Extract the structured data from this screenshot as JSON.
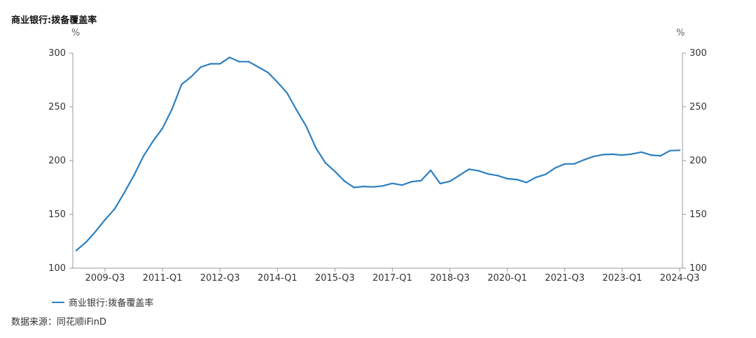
{
  "chart_data": {
    "type": "line",
    "title": "商业银行:拨备覆盖率",
    "y_unit_left": "%",
    "y_unit_right": "%",
    "ylim": [
      100,
      300
    ],
    "yticks": [
      100,
      150,
      200,
      250,
      300
    ],
    "xtick_labels": [
      "2009-Q3",
      "2011-Q1",
      "2012-Q3",
      "2014-Q1",
      "2015-Q3",
      "2017-Q1",
      "2018-Q3",
      "2020-Q1",
      "2021-Q3",
      "2023-Q1",
      "2024-Q3"
    ],
    "grid": false,
    "legend_position": "bottom-left",
    "series": [
      {
        "name": "商业银行:拨备覆盖率",
        "color": "#2b7fc1",
        "x": [
          "2008-Q4",
          "2009-Q1",
          "2009-Q2",
          "2009-Q3",
          "2009-Q4",
          "2010-Q1",
          "2010-Q2",
          "2010-Q3",
          "2010-Q4",
          "2011-Q1",
          "2011-Q2",
          "2011-Q3",
          "2011-Q4",
          "2012-Q1",
          "2012-Q2",
          "2012-Q3",
          "2012-Q4",
          "2013-Q1",
          "2013-Q2",
          "2013-Q3",
          "2013-Q4",
          "2014-Q1",
          "2014-Q2",
          "2014-Q3",
          "2014-Q4",
          "2015-Q1",
          "2015-Q2",
          "2015-Q3",
          "2015-Q4",
          "2016-Q1",
          "2016-Q2",
          "2016-Q3",
          "2016-Q4",
          "2017-Q1",
          "2017-Q2",
          "2017-Q3",
          "2017-Q4",
          "2018-Q1",
          "2018-Q2",
          "2018-Q3",
          "2018-Q4",
          "2019-Q1",
          "2019-Q2",
          "2019-Q3",
          "2019-Q4",
          "2020-Q1",
          "2020-Q2",
          "2020-Q3",
          "2020-Q4",
          "2021-Q1",
          "2021-Q2",
          "2021-Q3",
          "2021-Q4",
          "2022-Q1",
          "2022-Q2",
          "2022-Q3",
          "2022-Q4",
          "2023-Q1",
          "2023-Q2",
          "2023-Q3",
          "2023-Q4",
          "2024-Q1",
          "2024-Q2",
          "2024-Q3"
        ],
        "values": [
          116.4,
          124,
          134,
          145,
          155,
          170,
          186,
          204,
          218,
          230,
          248,
          271,
          278,
          287,
          290,
          290,
          296,
          292,
          292,
          287,
          282,
          273,
          263,
          247,
          232,
          212,
          198,
          190,
          181,
          175,
          176,
          175.5,
          176.5,
          178.8,
          177.2,
          180.4,
          181.4,
          191,
          178.7,
          180.7,
          186.3,
          192,
          190.5,
          187.6,
          186.1,
          183.2,
          182.4,
          179.7,
          184.5,
          187.2,
          193.2,
          196.9,
          197,
          200.7,
          203.8,
          205.6,
          205.9,
          205.1,
          206.1,
          207.9,
          205.1,
          204.5,
          209.3,
          209.6
        ]
      }
    ]
  },
  "source_text": "数据来源：同花顺iFinD"
}
